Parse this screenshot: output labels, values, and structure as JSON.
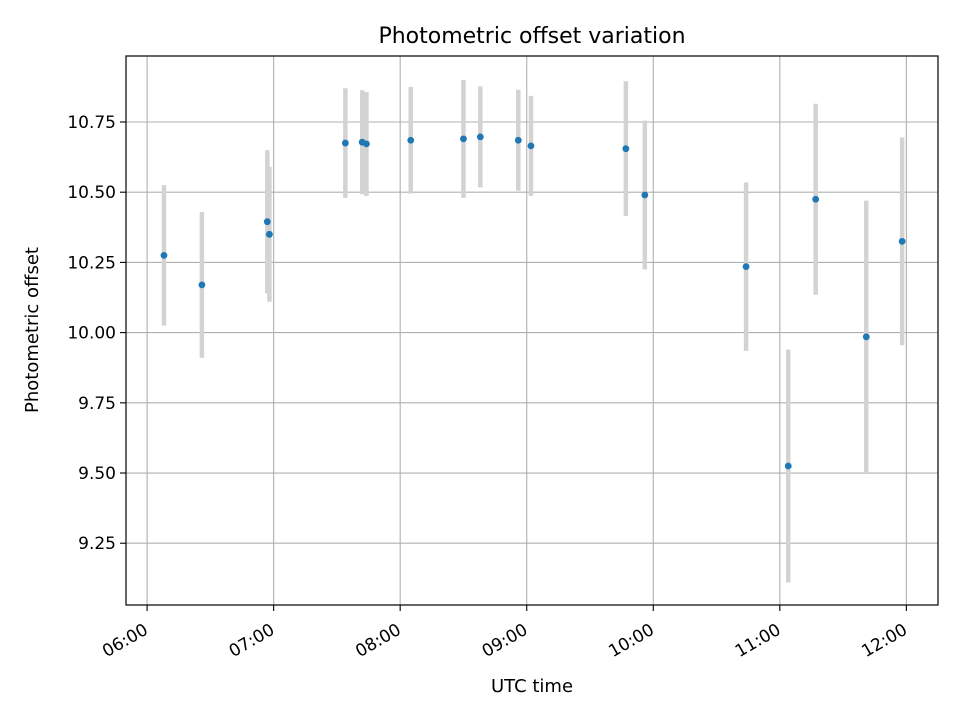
{
  "chart_data": {
    "type": "scatter",
    "title": "Photometric offset variation",
    "xlabel": "UTC time",
    "ylabel": "Photometric offset",
    "x_axis_type": "time",
    "x_range": [
      "05:50",
      "12:15"
    ],
    "ylim": [
      9.03,
      10.985
    ],
    "grid": true,
    "x_ticks": [
      "06:00",
      "07:00",
      "08:00",
      "09:00",
      "10:00",
      "11:00",
      "12:00"
    ],
    "y_ticks": [
      "9.25",
      "9.50",
      "9.75",
      "10.00",
      "10.25",
      "10.50",
      "10.75"
    ],
    "marker_color": "#1f77b4",
    "errorbar_color": "#d3d3d3",
    "series": [
      {
        "points": [
          {
            "x": "06:08",
            "y": 10.275,
            "err": 0.25
          },
          {
            "x": "06:26",
            "y": 10.17,
            "err": 0.26
          },
          {
            "x": "06:57",
            "y": 10.395,
            "err": 0.255
          },
          {
            "x": "06:58",
            "y": 10.35,
            "err": 0.24
          },
          {
            "x": "07:34",
            "y": 10.675,
            "err": 0.195
          },
          {
            "x": "07:42",
            "y": 10.678,
            "err": 0.185
          },
          {
            "x": "07:44",
            "y": 10.672,
            "err": 0.185
          },
          {
            "x": "08:05",
            "y": 10.685,
            "err": 0.19
          },
          {
            "x": "08:30",
            "y": 10.69,
            "err": 0.21
          },
          {
            "x": "08:38",
            "y": 10.697,
            "err": 0.18
          },
          {
            "x": "08:56",
            "y": 10.685,
            "err": 0.18
          },
          {
            "x": "09:02",
            "y": 10.665,
            "err": 0.178
          },
          {
            "x": "09:47",
            "y": 10.655,
            "err": 0.24
          },
          {
            "x": "09:56",
            "y": 10.49,
            "err": 0.265
          },
          {
            "x": "10:44",
            "y": 10.235,
            "err": 0.3
          },
          {
            "x": "11:04",
            "y": 9.525,
            "err": 0.415
          },
          {
            "x": "11:17",
            "y": 10.475,
            "err": 0.34
          },
          {
            "x": "11:41",
            "y": 9.985,
            "err": 0.485
          },
          {
            "x": "11:58",
            "y": 10.325,
            "err": 0.37
          }
        ]
      }
    ]
  }
}
